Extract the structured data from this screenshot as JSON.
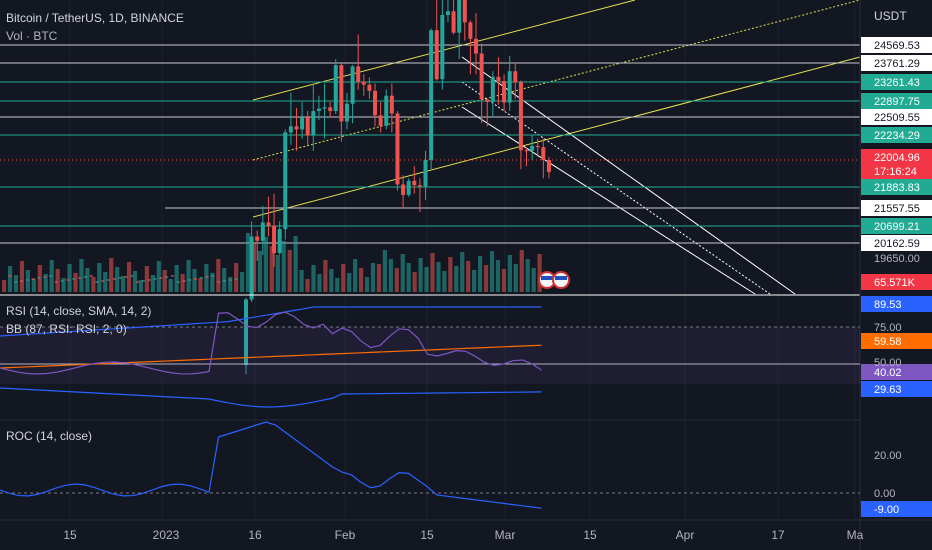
{
  "header": {
    "symbol": "Bitcoin / TetherUS, 1D, BINANCE",
    "volume": "Vol · BTC",
    "currency": "USDT"
  },
  "price_axis": {
    "levels": [
      {
        "label": "24569.53",
        "style": "white"
      },
      {
        "label": "23761.29",
        "style": "white"
      },
      {
        "label": "23261.43",
        "style": "teal"
      },
      {
        "label": "22897.75",
        "style": "teal"
      },
      {
        "label": "22509.55",
        "style": "white"
      },
      {
        "label": "22234.29",
        "style": "teal"
      },
      {
        "label": "21883.83",
        "style": "teal"
      },
      {
        "label": "21557.55",
        "style": "white"
      },
      {
        "label": "20699.21",
        "style": "teal"
      },
      {
        "label": "20162.59",
        "style": "white"
      }
    ],
    "current_price": "22004.96",
    "countdown": "17:16:24",
    "tick_label": "19650.00",
    "volume_tag": "65.571K"
  },
  "rsi_panel": {
    "title": "RSI (14, close, SMA, 14, 2)",
    "bb_title": "BB (87, RSI: RSI, 2, 0)",
    "tags": {
      "upper": "89.53",
      "sma": "59.58",
      "rsi": "40.02",
      "lower": "29.63"
    },
    "ticks": [
      "75.00",
      "50.00"
    ]
  },
  "roc_panel": {
    "title": "ROC (14, close)",
    "ticks": [
      "20.00",
      "0.00"
    ],
    "tag": "-9.00"
  },
  "time_axis": [
    "15",
    "2023",
    "16",
    "Feb",
    "15",
    "Mar",
    "15",
    "Apr",
    "17",
    "Ma"
  ],
  "colors": {
    "background": "#131722",
    "up": "#26a69a",
    "down": "#ef5350",
    "teal_tag": "#22ab94",
    "white_tag": "#ffffff",
    "channel": "#e5e04d",
    "rsi_line": "#7e57c2",
    "bb_band": "#2962ff",
    "sma_line": "#ff6d00",
    "roc_line": "#2962ff"
  },
  "chart_data": {
    "type": "candlestick",
    "title": "Bitcoin / TetherUS, 1D, BINANCE",
    "x_range": [
      "2022-12-04",
      "2023-05-01"
    ],
    "ohlc": [
      {
        "date": "2023-01-13",
        "o": 18850,
        "h": 19950,
        "l": 18700,
        "c": 19920
      },
      {
        "date": "2023-01-14",
        "o": 19920,
        "h": 21200,
        "l": 19880,
        "c": 20950
      },
      {
        "date": "2023-01-15",
        "o": 20950,
        "h": 21050,
        "l": 20550,
        "c": 20880
      },
      {
        "date": "2023-01-16",
        "o": 20880,
        "h": 21450,
        "l": 20650,
        "c": 21180
      },
      {
        "date": "2023-01-17",
        "o": 21180,
        "h": 21600,
        "l": 20950,
        "c": 21130
      },
      {
        "date": "2023-01-18",
        "o": 21130,
        "h": 21650,
        "l": 20450,
        "c": 20680
      },
      {
        "date": "2023-01-19",
        "o": 20680,
        "h": 21200,
        "l": 20650,
        "c": 21070
      },
      {
        "date": "2023-01-20",
        "o": 21070,
        "h": 22700,
        "l": 20900,
        "c": 22650
      },
      {
        "date": "2023-01-21",
        "o": 22650,
        "h": 23300,
        "l": 22450,
        "c": 22750
      },
      {
        "date": "2023-01-22",
        "o": 22750,
        "h": 23050,
        "l": 22350,
        "c": 22700
      },
      {
        "date": "2023-01-23",
        "o": 22700,
        "h": 23150,
        "l": 22550,
        "c": 22900
      },
      {
        "date": "2023-01-24",
        "o": 22900,
        "h": 23000,
        "l": 22450,
        "c": 22600
      },
      {
        "date": "2023-01-25",
        "o": 22600,
        "h": 23450,
        "l": 22350,
        "c": 23000
      },
      {
        "date": "2023-01-26",
        "o": 23000,
        "h": 23250,
        "l": 22850,
        "c": 23040
      },
      {
        "date": "2023-01-27",
        "o": 23040,
        "h": 23450,
        "l": 22550,
        "c": 23060
      },
      {
        "date": "2023-01-28",
        "o": 23060,
        "h": 23150,
        "l": 22900,
        "c": 23000
      },
      {
        "date": "2023-01-29",
        "o": 23000,
        "h": 23850,
        "l": 22950,
        "c": 23750
      },
      {
        "date": "2023-01-30",
        "o": 23750,
        "h": 23800,
        "l": 22500,
        "c": 22830
      },
      {
        "date": "2023-01-31",
        "o": 22830,
        "h": 23300,
        "l": 22700,
        "c": 23120
      },
      {
        "date": "2023-02-01",
        "o": 23120,
        "h": 23750,
        "l": 22800,
        "c": 23730
      },
      {
        "date": "2023-02-02",
        "o": 23730,
        "h": 24250,
        "l": 23350,
        "c": 23480
      },
      {
        "date": "2023-02-03",
        "o": 23480,
        "h": 23600,
        "l": 23250,
        "c": 23430
      },
      {
        "date": "2023-02-04",
        "o": 23430,
        "h": 23550,
        "l": 23200,
        "c": 23330
      },
      {
        "date": "2023-02-05",
        "o": 23330,
        "h": 23450,
        "l": 22750,
        "c": 22930
      },
      {
        "date": "2023-02-06",
        "o": 22930,
        "h": 23150,
        "l": 22650,
        "c": 22760
      },
      {
        "date": "2023-02-07",
        "o": 22760,
        "h": 23350,
        "l": 22700,
        "c": 23250
      },
      {
        "date": "2023-02-08",
        "o": 23250,
        "h": 23450,
        "l": 22650,
        "c": 22960
      },
      {
        "date": "2023-02-09",
        "o": 22960,
        "h": 23000,
        "l": 21700,
        "c": 21800
      },
      {
        "date": "2023-02-10",
        "o": 21800,
        "h": 21950,
        "l": 21400,
        "c": 21630
      },
      {
        "date": "2023-02-11",
        "o": 21630,
        "h": 21900,
        "l": 21600,
        "c": 21860
      },
      {
        "date": "2023-02-12",
        "o": 21860,
        "h": 22100,
        "l": 21650,
        "c": 21790
      },
      {
        "date": "2023-02-13",
        "o": 21790,
        "h": 21900,
        "l": 21350,
        "c": 21770
      },
      {
        "date": "2023-02-14",
        "o": 21770,
        "h": 22350,
        "l": 21550,
        "c": 22200
      },
      {
        "date": "2023-02-15",
        "o": 22200,
        "h": 24350,
        "l": 22050,
        "c": 24320
      },
      {
        "date": "2023-02-16",
        "o": 24320,
        "h": 25250,
        "l": 23500,
        "c": 23520
      },
      {
        "date": "2023-02-17",
        "o": 23520,
        "h": 25000,
        "l": 23350,
        "c": 24570
      },
      {
        "date": "2023-02-18",
        "o": 24570,
        "h": 24900,
        "l": 24450,
        "c": 24630
      },
      {
        "date": "2023-02-19",
        "o": 24630,
        "h": 25150,
        "l": 24250,
        "c": 24280
      },
      {
        "date": "2023-02-20",
        "o": 24280,
        "h": 25000,
        "l": 23850,
        "c": 24840
      },
      {
        "date": "2023-02-21",
        "o": 24840,
        "h": 25250,
        "l": 24150,
        "c": 24450
      },
      {
        "date": "2023-02-22",
        "o": 24450,
        "h": 24480,
        "l": 23600,
        "c": 24180
      },
      {
        "date": "2023-02-23",
        "o": 24180,
        "h": 24600,
        "l": 23600,
        "c": 23940
      },
      {
        "date": "2023-02-24",
        "o": 23940,
        "h": 24100,
        "l": 22800,
        "c": 23190
      },
      {
        "date": "2023-02-25",
        "o": 23190,
        "h": 23200,
        "l": 22750,
        "c": 23150
      },
      {
        "date": "2023-02-26",
        "o": 23150,
        "h": 23650,
        "l": 22900,
        "c": 23560
      },
      {
        "date": "2023-02-27",
        "o": 23560,
        "h": 23880,
        "l": 23100,
        "c": 23490
      },
      {
        "date": "2023-02-28",
        "o": 23490,
        "h": 23600,
        "l": 23000,
        "c": 23140
      },
      {
        "date": "2023-03-01",
        "o": 23140,
        "h": 23900,
        "l": 23000,
        "c": 23650
      },
      {
        "date": "2023-03-02",
        "o": 23650,
        "h": 23800,
        "l": 23200,
        "c": 23470
      },
      {
        "date": "2023-03-03",
        "o": 23470,
        "h": 23500,
        "l": 22050,
        "c": 22360
      },
      {
        "date": "2023-03-04",
        "o": 22360,
        "h": 22400,
        "l": 22100,
        "c": 22350
      },
      {
        "date": "2023-03-05",
        "o": 22350,
        "h": 22600,
        "l": 22200,
        "c": 22430
      },
      {
        "date": "2023-03-06",
        "o": 22430,
        "h": 22550,
        "l": 22250,
        "c": 22410
      },
      {
        "date": "2023-03-07",
        "o": 22410,
        "h": 22550,
        "l": 21900,
        "c": 22200
      },
      {
        "date": "2023-03-08",
        "o": 22200,
        "h": 22250,
        "l": 21900,
        "c": 22005
      }
    ]
  }
}
